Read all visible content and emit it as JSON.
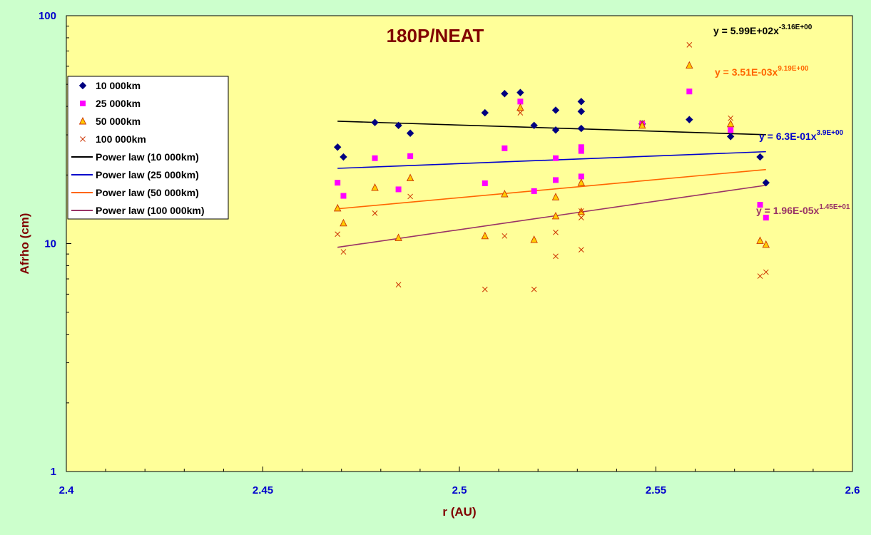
{
  "chart_data": {
    "type": "scatter",
    "title": "180P/NEAT",
    "xlabel": "r (AU)",
    "ylabel": "Afrho (cm)",
    "xlim": [
      2.4,
      2.6
    ],
    "ylim": [
      1,
      100
    ],
    "yscale": "log",
    "x_ticks": [
      "2.4",
      "2.45",
      "2.5",
      "2.55",
      "2.6"
    ],
    "y_ticks": [
      "1",
      "10",
      "100"
    ],
    "grid": false,
    "legend_position": "left",
    "background_color": "#ffff99",
    "page_color": "#ccffcc",
    "series": [
      {
        "name": "10 000km",
        "marker": "diamond",
        "color": "#000080",
        "points": [
          [
            2.469,
            26.5
          ],
          [
            2.4705,
            24.0
          ],
          [
            2.4785,
            34.0
          ],
          [
            2.4845,
            33.0
          ],
          [
            2.4875,
            30.5
          ],
          [
            2.5065,
            37.5
          ],
          [
            2.5115,
            45.5
          ],
          [
            2.5155,
            46.0
          ],
          [
            2.519,
            33.0
          ],
          [
            2.5245,
            38.5
          ],
          [
            2.5245,
            31.5
          ],
          [
            2.531,
            42.0
          ],
          [
            2.531,
            38.0
          ],
          [
            2.531,
            32.0
          ],
          [
            2.5465,
            33.5
          ],
          [
            2.5585,
            35.0
          ],
          [
            2.569,
            29.5
          ],
          [
            2.5765,
            24.0
          ],
          [
            2.578,
            18.5
          ]
        ]
      },
      {
        "name": "25 000km",
        "color": "#ff00ff",
        "marker": "square",
        "points": [
          [
            2.469,
            18.5
          ],
          [
            2.4705,
            16.2
          ],
          [
            2.4785,
            23.7
          ],
          [
            2.4845,
            17.3
          ],
          [
            2.4875,
            24.2
          ],
          [
            2.5065,
            18.4
          ],
          [
            2.5115,
            26.2
          ],
          [
            2.5155,
            42.0
          ],
          [
            2.519,
            17.0
          ],
          [
            2.5245,
            23.7
          ],
          [
            2.5245,
            19.0
          ],
          [
            2.531,
            26.5
          ],
          [
            2.531,
            25.5
          ],
          [
            2.531,
            19.7
          ],
          [
            2.5465,
            33.5
          ],
          [
            2.5585,
            46.5
          ],
          [
            2.569,
            31.5
          ],
          [
            2.5765,
            14.8
          ],
          [
            2.578,
            13.0
          ]
        ]
      },
      {
        "name": "50 000km",
        "color": "#ff9900",
        "marker": "triangle",
        "points": [
          [
            2.469,
            14.3
          ],
          [
            2.4705,
            12.3
          ],
          [
            2.4785,
            17.6
          ],
          [
            2.4845,
            10.6
          ],
          [
            2.4875,
            19.4
          ],
          [
            2.5065,
            10.8
          ],
          [
            2.5115,
            16.5
          ],
          [
            2.5155,
            39.5
          ],
          [
            2.519,
            10.4
          ],
          [
            2.5245,
            16.0
          ],
          [
            2.5245,
            13.2
          ],
          [
            2.531,
            18.5
          ],
          [
            2.531,
            13.8
          ],
          [
            2.5465,
            33.0
          ],
          [
            2.5585,
            60.5
          ],
          [
            2.569,
            33.5
          ],
          [
            2.5765,
            10.3
          ],
          [
            2.578,
            9.9
          ]
        ]
      },
      {
        "name": "100 000km",
        "color": "#cc3300",
        "marker": "x",
        "points": [
          [
            2.469,
            11.0
          ],
          [
            2.4705,
            9.2
          ],
          [
            2.4785,
            13.6
          ],
          [
            2.4845,
            6.6
          ],
          [
            2.4875,
            16.1
          ],
          [
            2.5065,
            6.3
          ],
          [
            2.5115,
            10.8
          ],
          [
            2.5155,
            37.5
          ],
          [
            2.519,
            6.3
          ],
          [
            2.5245,
            11.2
          ],
          [
            2.5245,
            8.8
          ],
          [
            2.531,
            13.9
          ],
          [
            2.531,
            13.0
          ],
          [
            2.531,
            9.4
          ],
          [
            2.5465,
            34.0
          ],
          [
            2.5585,
            74.5
          ],
          [
            2.569,
            35.5
          ],
          [
            2.5765,
            7.2
          ],
          [
            2.578,
            7.5
          ]
        ]
      }
    ],
    "trendlines": [
      {
        "name": "Power law (10 000km)",
        "color": "#000000",
        "coefficient": 599,
        "exponent": -3.16,
        "equation": "y = 5.99E+02x",
        "equation_exponent": "-3.16E+00"
      },
      {
        "name": "Power law (25 000km)",
        "color": "#0000cc",
        "coefficient": 0.63,
        "exponent": 3.9,
        "equation": "y = 6.3E-01x",
        "equation_exponent": "3.9E+00"
      },
      {
        "name": "Power law (50 000km)",
        "color": "#ff6600",
        "coefficient": 0.00351,
        "exponent": 9.19,
        "equation": "y = 3.51E-03x",
        "equation_exponent": "9.19E+00"
      },
      {
        "name": "Power law (100 000km)",
        "color": "#993366",
        "coefficient": 1.96e-05,
        "exponent": 14.5,
        "equation": "y = 1.96E-05x",
        "equation_exponent": "1.45E+01"
      }
    ]
  }
}
